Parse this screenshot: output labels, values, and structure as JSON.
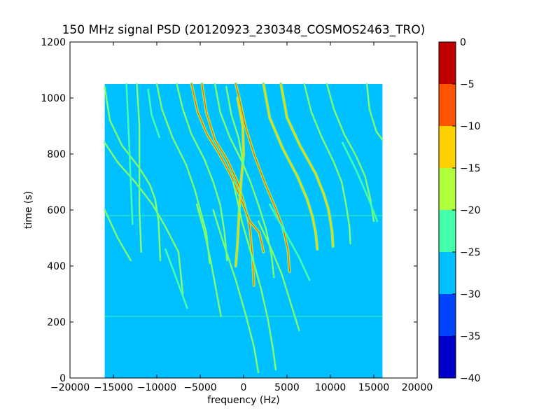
{
  "chart_data": {
    "type": "heatmap",
    "title": "150 MHz signal PSD (20120923_230348_COSMOS2463_TRO)",
    "xlabel": "frequency (Hz)",
    "ylabel": "time (s)",
    "xlim": [
      -20000,
      20000
    ],
    "ylim": [
      0,
      1200
    ],
    "x_ticks": [
      -20000,
      -15000,
      -10000,
      -5000,
      0,
      5000,
      10000,
      15000,
      20000
    ],
    "x_tick_labels": [
      "−20000",
      "−15000",
      "−10000",
      "−5000",
      "0",
      "5000",
      "10000",
      "15000",
      "20000"
    ],
    "y_ticks": [
      0,
      200,
      400,
      600,
      800,
      1000,
      1200
    ],
    "y_tick_labels": [
      "0",
      "200",
      "400",
      "600",
      "800",
      "1000",
      "1200"
    ],
    "data_extent": {
      "freq_min": -16000,
      "freq_max": 16000,
      "time_min": 0,
      "time_max": 1050
    },
    "background_level_db": -28,
    "colorbar": {
      "levels": [
        -40,
        -35,
        -30,
        -25,
        -20,
        -15,
        -10,
        -5,
        0
      ],
      "tick_labels": [
        "−40",
        "−35",
        "−30",
        "−25",
        "−20",
        "−15",
        "−10",
        "−5",
        "0"
      ],
      "colors": [
        "#0000c8",
        "#0044ff",
        "#00c0ff",
        "#44ffaa",
        "#b0ff3c",
        "#ffd000",
        "#ff5500",
        "#c00000"
      ]
    },
    "traces": [
      {
        "level_db": -8,
        "points": [
          [
            -900,
            1050
          ],
          [
            -500,
            1000
          ],
          [
            200,
            900
          ],
          [
            1200,
            800
          ],
          [
            2400,
            700
          ],
          [
            3500,
            620
          ],
          [
            4500,
            540
          ],
          [
            5100,
            460
          ],
          [
            5300,
            380
          ]
        ]
      },
      {
        "level_db": -8,
        "points": [
          [
            -4800,
            1050
          ],
          [
            -4300,
            950
          ],
          [
            -3300,
            850
          ],
          [
            -1900,
            780
          ],
          [
            -700,
            700
          ],
          [
            100,
            620
          ],
          [
            700,
            540
          ],
          [
            1000,
            440
          ],
          [
            1200,
            330
          ]
        ]
      },
      {
        "level_db": -10,
        "points": [
          [
            -6000,
            1050
          ],
          [
            -5300,
            950
          ],
          [
            -4200,
            870
          ],
          [
            -2800,
            800
          ],
          [
            -1400,
            720
          ],
          [
            -300,
            640
          ],
          [
            700,
            560
          ],
          [
            1800,
            520
          ],
          [
            2100,
            480
          ],
          [
            2300,
            450
          ]
        ]
      },
      {
        "level_db": -12,
        "points": [
          [
            2300,
            1050
          ],
          [
            3000,
            930
          ],
          [
            4500,
            820
          ],
          [
            6200,
            720
          ],
          [
            7300,
            640
          ],
          [
            7900,
            580
          ],
          [
            8300,
            520
          ],
          [
            8500,
            460
          ]
        ]
      },
      {
        "level_db": -12,
        "points": [
          [
            4300,
            1050
          ],
          [
            5000,
            930
          ],
          [
            6500,
            830
          ],
          [
            8300,
            730
          ],
          [
            9200,
            660
          ],
          [
            9800,
            600
          ],
          [
            10200,
            520
          ],
          [
            10300,
            470
          ]
        ]
      },
      {
        "level_db": -15,
        "points": [
          [
            -700,
            1000
          ],
          [
            -100,
            900
          ],
          [
            0,
            800
          ],
          [
            -300,
            700
          ],
          [
            -500,
            600
          ],
          [
            -700,
            480
          ],
          [
            -900,
            400
          ]
        ]
      },
      {
        "level_db": -18,
        "points": [
          [
            -16000,
            1040
          ],
          [
            -15400,
            920
          ],
          [
            -14000,
            830
          ],
          [
            -12000,
            750
          ],
          [
            -10800,
            690
          ],
          [
            -10200,
            640
          ],
          [
            -9800,
            560
          ],
          [
            -9600,
            420
          ]
        ]
      },
      {
        "level_db": -20,
        "points": [
          [
            -16000,
            840
          ],
          [
            -14500,
            770
          ],
          [
            -12500,
            700
          ],
          [
            -10500,
            620
          ],
          [
            -9000,
            540
          ],
          [
            -7500,
            450
          ],
          [
            -7000,
            300
          ]
        ]
      },
      {
        "level_db": -20,
        "points": [
          [
            -10000,
            1050
          ],
          [
            -9400,
            960
          ],
          [
            -8200,
            860
          ],
          [
            -6600,
            760
          ],
          [
            -5600,
            670
          ],
          [
            -5000,
            600
          ],
          [
            -4300,
            520
          ],
          [
            -3900,
            410
          ]
        ]
      },
      {
        "level_db": -20,
        "points": [
          [
            -7700,
            1050
          ],
          [
            -7000,
            960
          ],
          [
            -6000,
            870
          ],
          [
            -4500,
            780
          ],
          [
            -3500,
            700
          ],
          [
            -2700,
            620
          ],
          [
            -2200,
            520
          ],
          [
            -1900,
            420
          ]
        ]
      },
      {
        "level_db": -20,
        "points": [
          [
            -3300,
            1050
          ],
          [
            -2700,
            950
          ],
          [
            -1600,
            860
          ],
          [
            -300,
            780
          ],
          [
            800,
            700
          ],
          [
            1800,
            610
          ],
          [
            2600,
            530
          ],
          [
            3200,
            440
          ],
          [
            3500,
            360
          ]
        ]
      },
      {
        "level_db": -18,
        "points": [
          [
            -1200,
            700
          ],
          [
            -200,
            560
          ],
          [
            1000,
            430
          ],
          [
            2000,
            320
          ],
          [
            2800,
            210
          ],
          [
            3400,
            100
          ],
          [
            3700,
            30
          ]
        ]
      },
      {
        "level_db": -20,
        "points": [
          [
            -3500,
            600
          ],
          [
            -2300,
            480
          ],
          [
            -900,
            350
          ],
          [
            300,
            220
          ],
          [
            1200,
            110
          ],
          [
            1700,
            20
          ]
        ]
      },
      {
        "level_db": -20,
        "points": [
          [
            7000,
            1050
          ],
          [
            7800,
            950
          ],
          [
            9000,
            860
          ],
          [
            10400,
            770
          ],
          [
            11300,
            700
          ],
          [
            11800,
            620
          ],
          [
            12200,
            540
          ],
          [
            12300,
            480
          ]
        ]
      },
      {
        "level_db": -20,
        "points": [
          [
            9600,
            1050
          ],
          [
            10400,
            960
          ],
          [
            11600,
            870
          ],
          [
            13000,
            790
          ],
          [
            14000,
            720
          ],
          [
            14600,
            640
          ],
          [
            15000,
            560
          ]
        ]
      },
      {
        "level_db": -20,
        "points": [
          [
            14200,
            1050
          ],
          [
            14500,
            960
          ],
          [
            15300,
            880
          ],
          [
            16000,
            850
          ]
        ]
      },
      {
        "level_db": -22,
        "points": [
          [
            11400,
            840
          ],
          [
            13000,
            740
          ],
          [
            14400,
            640
          ],
          [
            15400,
            560
          ]
        ]
      },
      {
        "level_db": -20,
        "points": [
          [
            1700,
            560
          ],
          [
            3200,
            460
          ],
          [
            4400,
            370
          ],
          [
            5400,
            270
          ],
          [
            6400,
            170
          ]
        ]
      },
      {
        "level_db": -22,
        "points": [
          [
            3000,
            620
          ],
          [
            4800,
            520
          ],
          [
            6400,
            430
          ],
          [
            7600,
            350
          ]
        ]
      },
      {
        "level_db": -20,
        "points": [
          [
            -16000,
            600
          ],
          [
            -14500,
            500
          ],
          [
            -13000,
            420
          ]
        ]
      },
      {
        "level_db": -20,
        "points": [
          [
            -12300,
            1050
          ],
          [
            -12000,
            900
          ],
          [
            -12000,
            600
          ],
          [
            -11800,
            450
          ]
        ]
      },
      {
        "level_db": -20,
        "points": [
          [
            -5400,
            620
          ],
          [
            -4500,
            520
          ],
          [
            -3800,
            420
          ],
          [
            -3200,
            320
          ],
          [
            -2600,
            220
          ]
        ]
      },
      {
        "level_db": -22,
        "points": [
          [
            -13500,
            1050
          ],
          [
            -13200,
            850
          ],
          [
            -13000,
            700
          ],
          [
            -12800,
            550
          ]
        ]
      },
      {
        "level_db": -22,
        "points": [
          [
            -9000,
            460
          ],
          [
            -7800,
            360
          ],
          [
            -6500,
            250
          ]
        ]
      },
      {
        "level_db": -20,
        "points": [
          [
            -2000,
            1040
          ],
          [
            -1400,
            940
          ],
          [
            -600,
            860
          ],
          [
            0,
            760
          ]
        ]
      },
      {
        "level_db": -22,
        "points": [
          [
            -11000,
            1030
          ],
          [
            -10600,
            940
          ],
          [
            -9700,
            860
          ]
        ]
      }
    ],
    "horizontal_streaks": [
      {
        "time": 580,
        "level_db": -22
      },
      {
        "time": 220,
        "level_db": -22
      }
    ]
  }
}
